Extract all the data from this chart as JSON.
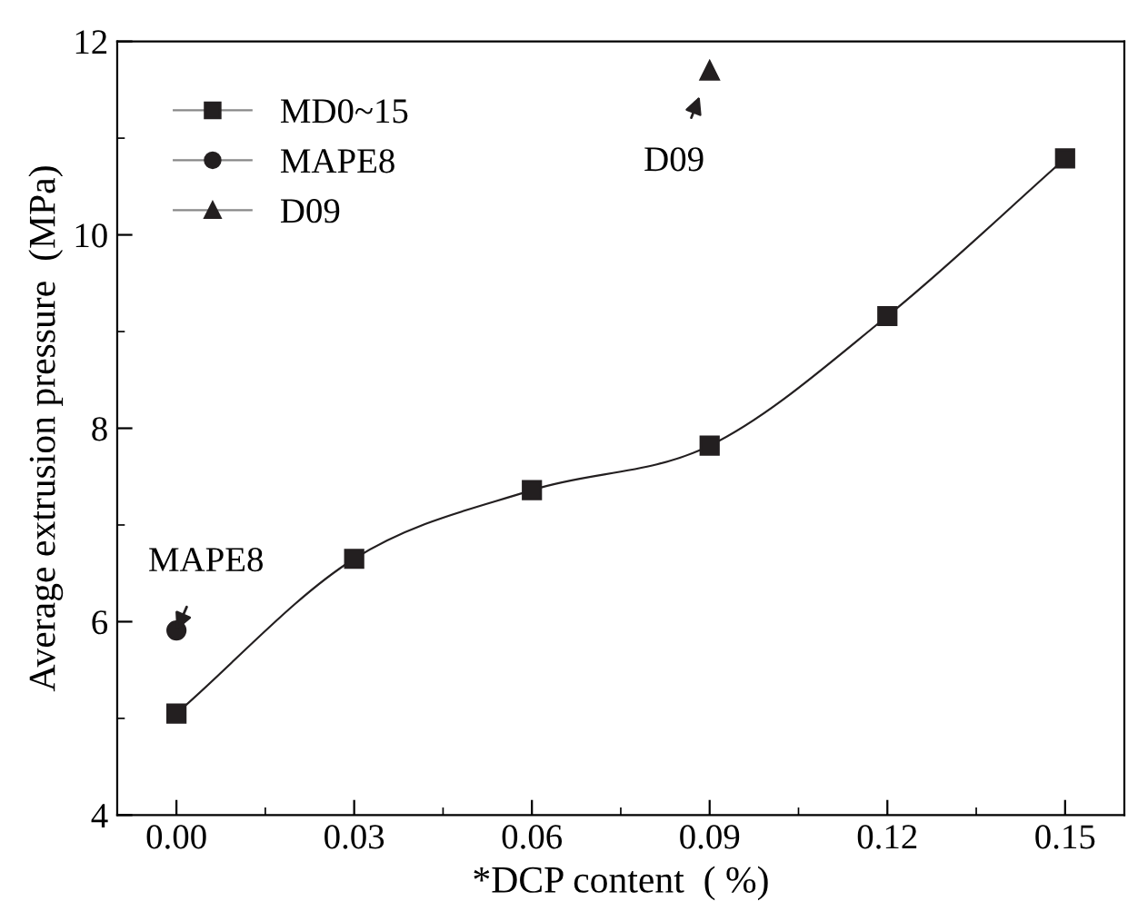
{
  "chart_data": {
    "type": "line",
    "xlabel": "*DCP content  ( %)",
    "ylabel": "Average extrusion pressure  (MPa)",
    "xlim": [
      -0.01,
      0.16
    ],
    "xticks": [
      {
        "value": 0.0,
        "label": "0.00"
      },
      {
        "value": 0.03,
        "label": "0.03"
      },
      {
        "value": 0.06,
        "label": "0.06"
      },
      {
        "value": 0.09,
        "label": "0.09"
      },
      {
        "value": 0.12,
        "label": "0.12"
      },
      {
        "value": 0.15,
        "label": "0.15"
      }
    ],
    "ylim": [
      4,
      12
    ],
    "yticks": [
      4,
      6,
      8,
      10,
      12
    ],
    "grid": false,
    "legend": "top left",
    "line_style": "solid",
    "series": [
      {
        "name": "MD0~15",
        "marker": "square",
        "color": "#231f20",
        "x": [
          0.0,
          0.03,
          0.06,
          0.09,
          0.12,
          0.15
        ],
        "values": [
          5.05,
          6.65,
          7.36,
          7.82,
          9.16,
          10.79
        ]
      },
      {
        "name": "MAPE8",
        "type": "scatter",
        "marker": "circle",
        "color": "#231f20",
        "x": [
          0.0
        ],
        "values": [
          5.91
        ]
      },
      {
        "name": "D09",
        "type": "scatter",
        "marker": "triangle",
        "color": "#231f20",
        "x": [
          0.09
        ],
        "values": [
          11.7
        ]
      }
    ],
    "annotations": [
      {
        "text": "MAPE8",
        "x": 0.0,
        "y": 5.91
      },
      {
        "text": "D09",
        "x": 0.09,
        "y": 11.7
      }
    ]
  }
}
